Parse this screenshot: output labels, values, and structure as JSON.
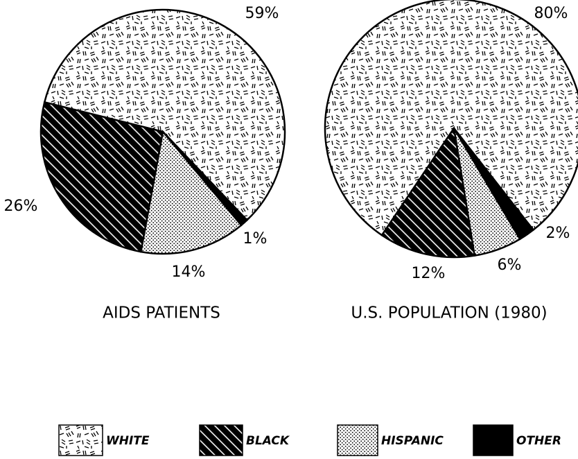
{
  "chart_data": [
    {
      "type": "pie",
      "title": "AIDS PATIENTS",
      "values": [
        59,
        26,
        14,
        1
      ],
      "value_labels": [
        "59%",
        "26%",
        "14%",
        "1%"
      ]
    },
    {
      "type": "pie",
      "title": "U.S. POPULATION (1980)",
      "values": [
        80,
        12,
        6,
        2
      ],
      "value_labels": [
        "80%",
        "12%",
        "6%",
        "2%"
      ]
    }
  ],
  "legend": {
    "labels": [
      "WHITE",
      "BLACK",
      "HISPANIC",
      "OTHER"
    ]
  }
}
